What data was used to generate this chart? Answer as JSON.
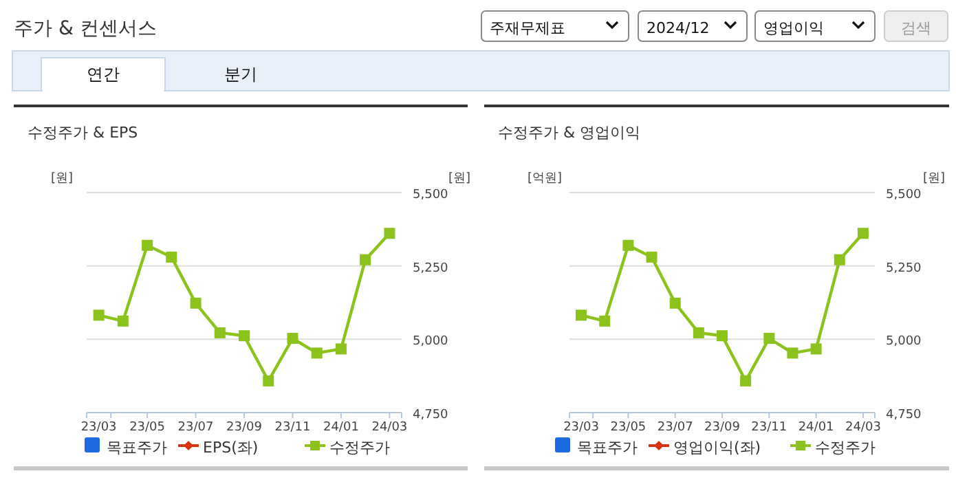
{
  "chart_data": [
    {
      "type": "other",
      "title": "주가 & 컨센서스",
      "annotations": [
        "주재무제표",
        "2024/12",
        "영업이익",
        "검색",
        "연간",
        "분기"
      ]
    },
    {
      "type": "line",
      "title": "수정주가 & EPS",
      "ylabel": "[원]",
      "y2label": "[원]",
      "categories": [
        "23/03",
        null,
        "23/05",
        null,
        "23/07",
        null,
        "23/09",
        null,
        "23/11",
        null,
        "24/01",
        null,
        "24/03"
      ],
      "y2lim": [
        4750,
        5500
      ],
      "y2ticks": [
        {
          "value": 4750,
          "label": "4,750"
        },
        {
          "value": 5000,
          "label": "5,000"
        },
        {
          "value": 5250,
          "label": "5,250"
        },
        {
          "value": 5500,
          "label": "5,500"
        }
      ],
      "grid": "y",
      "legend": "bottom",
      "marker": "square",
      "series": [
        {
          "name": "목표주가",
          "color": "#1e6be0",
          "type": "bar",
          "values": [
            null,
            null,
            null,
            null,
            null,
            null,
            null,
            null,
            null,
            null,
            null,
            null,
            null
          ]
        },
        {
          "name": "EPS(좌)",
          "color": "#d9340f",
          "marker": "diamond",
          "values": [
            null,
            null,
            null,
            null,
            null,
            null,
            null,
            null,
            null,
            null,
            null,
            null,
            null
          ]
        },
        {
          "name": "수정주가",
          "color": "#8cc21c",
          "axis": "y2",
          "values": [
            5082,
            5062,
            5320,
            5280,
            5123,
            5022,
            5012,
            4858,
            5003,
            4953,
            4967,
            5271,
            5361
          ]
        }
      ]
    },
    {
      "type": "line",
      "title": "수정주가 & 영업이익",
      "ylabel": "[억원]",
      "y2label": "[원]",
      "categories": [
        "23/03",
        null,
        "23/05",
        null,
        "23/07",
        null,
        "23/09",
        null,
        "23/11",
        null,
        "24/01",
        null,
        "24/03"
      ],
      "y2lim": [
        4750,
        5500
      ],
      "y2ticks": [
        {
          "value": 4750,
          "label": "4,750"
        },
        {
          "value": 5000,
          "label": "5,000"
        },
        {
          "value": 5250,
          "label": "5,250"
        },
        {
          "value": 5500,
          "label": "5,500"
        }
      ],
      "grid": "y",
      "legend": "bottom",
      "marker": "square",
      "series": [
        {
          "name": "목표주가",
          "color": "#1e6be0",
          "type": "bar",
          "values": [
            null,
            null,
            null,
            null,
            null,
            null,
            null,
            null,
            null,
            null,
            null,
            null,
            null
          ]
        },
        {
          "name": "영업이익(좌)",
          "color": "#d9340f",
          "marker": "diamond",
          "values": [
            null,
            null,
            null,
            null,
            null,
            null,
            null,
            null,
            null,
            null,
            null,
            null,
            null
          ]
        },
        {
          "name": "수정주가",
          "color": "#8cc21c",
          "axis": "y2",
          "values": [
            5082,
            5062,
            5320,
            5280,
            5123,
            5022,
            5012,
            4858,
            5003,
            4953,
            4967,
            5271,
            5361
          ]
        }
      ]
    }
  ]
}
